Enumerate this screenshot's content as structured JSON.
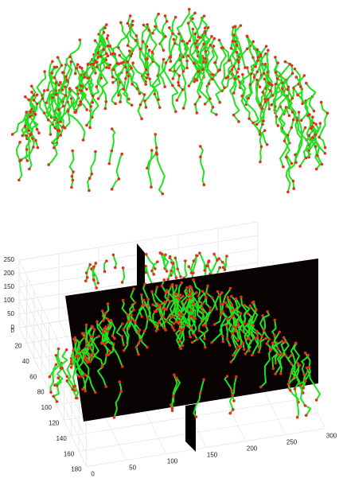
{
  "axes": {
    "z_ticks": [
      0,
      50,
      100,
      150,
      200,
      250
    ],
    "y_ticks": [
      0,
      20,
      40,
      60,
      80,
      100,
      120,
      140,
      160,
      180
    ],
    "x_ticks": [
      0,
      50,
      100,
      150,
      200,
      250,
      300
    ]
  }
}
